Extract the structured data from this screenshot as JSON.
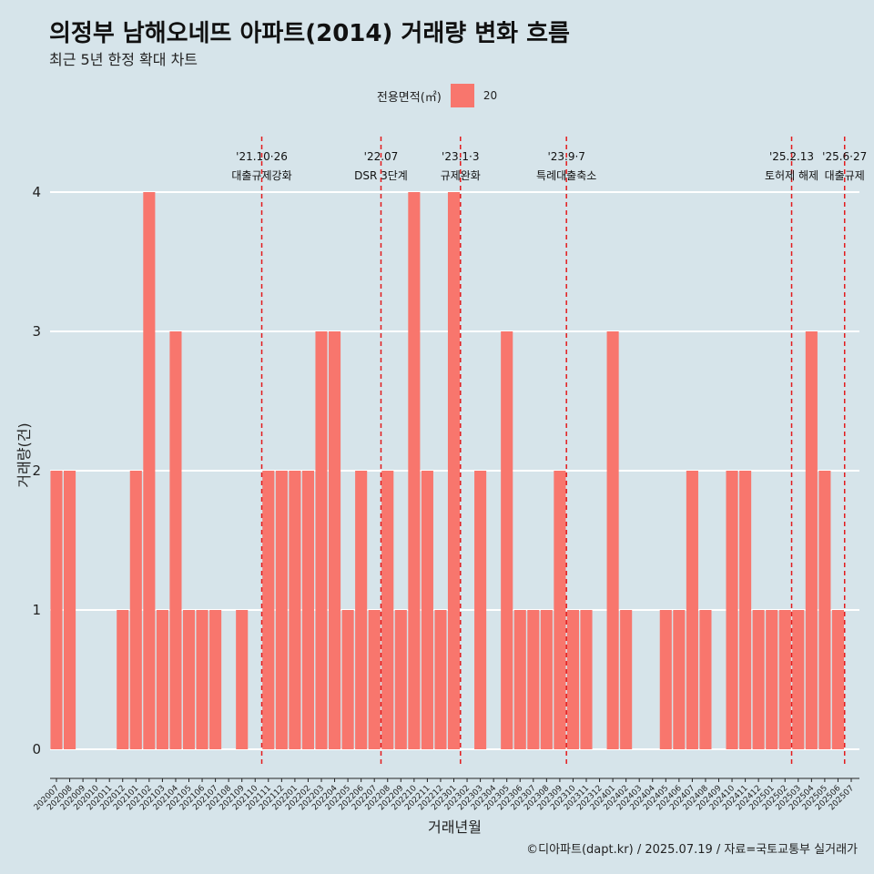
{
  "title": "의정부 남해오네뜨 아파트(2014) 거래량 변화 흐름",
  "subtitle": "최근 5년 한정 확대 차트",
  "legend": {
    "title": "전용면적(㎡)",
    "entries": [
      {
        "label": "20",
        "color": "#f8766d"
      }
    ]
  },
  "caption": "©디아파트(dapt.kr) / 2025.07.19 / 자료=국토교통부 실거래가",
  "colors": {
    "background": "#d6e4ea",
    "bar": "#f8766d",
    "gridline": "#ffffff",
    "event_line": "#e31a1c"
  },
  "chart_data": {
    "type": "bar",
    "xlabel": "거래년월",
    "ylabel": "거래량(건)",
    "ylim": [
      0,
      4
    ],
    "yticks": [
      0,
      1,
      2,
      3,
      4
    ],
    "grid": true,
    "legend_position": "top",
    "categories": [
      "202007",
      "202008",
      "202009",
      "202010",
      "202011",
      "202012",
      "202101",
      "202102",
      "202103",
      "202104",
      "202105",
      "202106",
      "202107",
      "202108",
      "202109",
      "202110",
      "202111",
      "202112",
      "202201",
      "202202",
      "202203",
      "202204",
      "202205",
      "202206",
      "202207",
      "202208",
      "202209",
      "202210",
      "202211",
      "202212",
      "202301",
      "202302",
      "202303",
      "202304",
      "202305",
      "202306",
      "202307",
      "202308",
      "202309",
      "202310",
      "202311",
      "202312",
      "202401",
      "202402",
      "202403",
      "202404",
      "202405",
      "202406",
      "202407",
      "202408",
      "202409",
      "202410",
      "202411",
      "202412",
      "202501",
      "202502",
      "202503",
      "202504",
      "202505",
      "202506",
      "202507"
    ],
    "series": [
      {
        "name": "20",
        "values": [
          2,
          2,
          0,
          0,
          0,
          1,
          2,
          4,
          1,
          3,
          1,
          1,
          1,
          0,
          1,
          0,
          2,
          2,
          2,
          2,
          3,
          3,
          1,
          2,
          1,
          2,
          1,
          4,
          2,
          1,
          4,
          0,
          2,
          0,
          3,
          1,
          1,
          1,
          2,
          1,
          1,
          0,
          3,
          1,
          0,
          0,
          1,
          1,
          2,
          1,
          0,
          2,
          2,
          1,
          1,
          1,
          1,
          3,
          2,
          1,
          0
        ]
      }
    ],
    "events": [
      {
        "date": "202110",
        "label_date": "'21.10·26",
        "label_text": "대출규제강화"
      },
      {
        "date": "202207",
        "label_date": "'22.07",
        "label_text": "DSR 3단계"
      },
      {
        "date": "202301",
        "label_date": "'23.1·3",
        "label_text": "규제완화"
      },
      {
        "date": "202309",
        "label_date": "'23.9·7",
        "label_text": "특례대출축소"
      },
      {
        "date": "202502",
        "label_date": "'25.2.13",
        "label_text": "토허제 해제"
      },
      {
        "date": "202506",
        "label_date": "'25.6·27",
        "label_text": "대출규제"
      }
    ]
  }
}
